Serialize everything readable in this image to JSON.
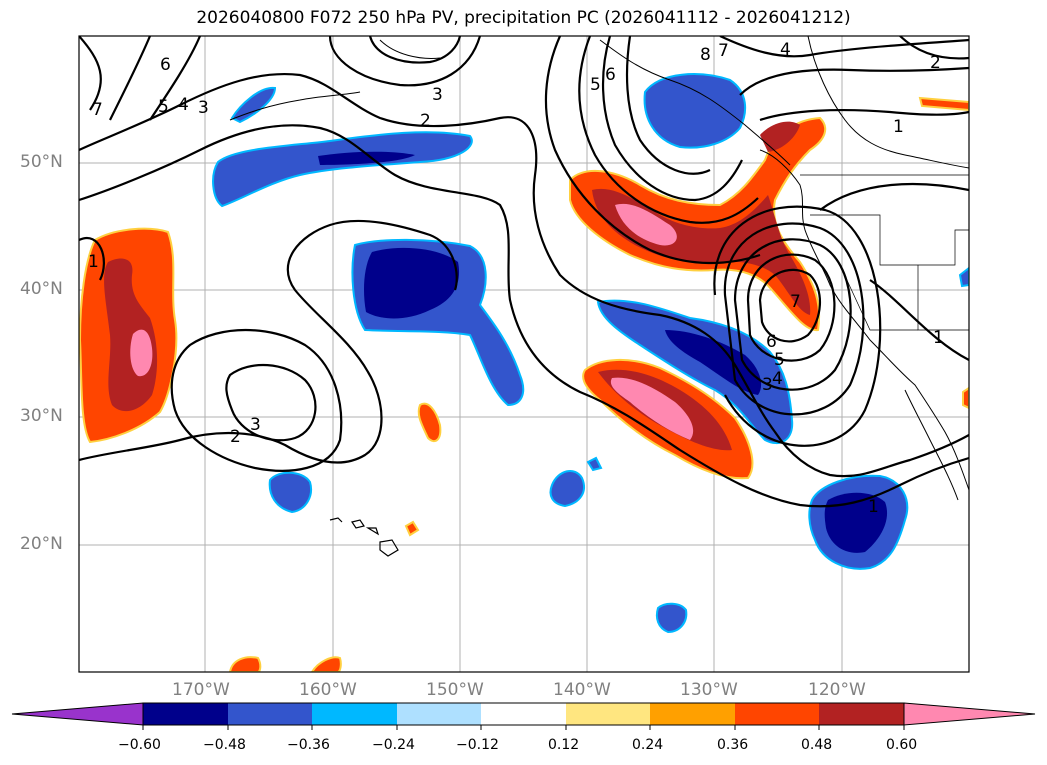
{
  "title": "2026040800 F072 250 hPa PV, precipitation PC (2026041112 - 2026041212)",
  "lat_labels": [
    "50°N",
    "40°N",
    "30°N",
    "20°N"
  ],
  "lon_labels": [
    "170°W",
    "160°W",
    "150°W",
    "140°W",
    "130°W",
    "120°W"
  ],
  "colorbar": {
    "ticks": [
      "−0.60",
      "−0.48",
      "−0.36",
      "−0.24",
      "−0.12",
      "0.12",
      "0.24",
      "0.36",
      "0.48",
      "0.60"
    ],
    "colors": [
      "#9933cc",
      "#00008b",
      "#3355cc",
      "#00b8ff",
      "#aee0ff",
      "#ffffff",
      "#ffe680",
      "#ffa000",
      "#ff4500",
      "#b22222",
      "#ff88b0"
    ]
  },
  "pv_contour_labels": [
    "1",
    "2",
    "3",
    "4",
    "5",
    "6",
    "7",
    "8"
  ],
  "pc_colors": {
    "neg_strong": "#00008b",
    "neg_mid": "#3355cc",
    "neg_weak": "#00b8ff",
    "pos_mid": "#ff4500",
    "pos_strong": "#b22222",
    "pos_max": "#ff88b0"
  }
}
